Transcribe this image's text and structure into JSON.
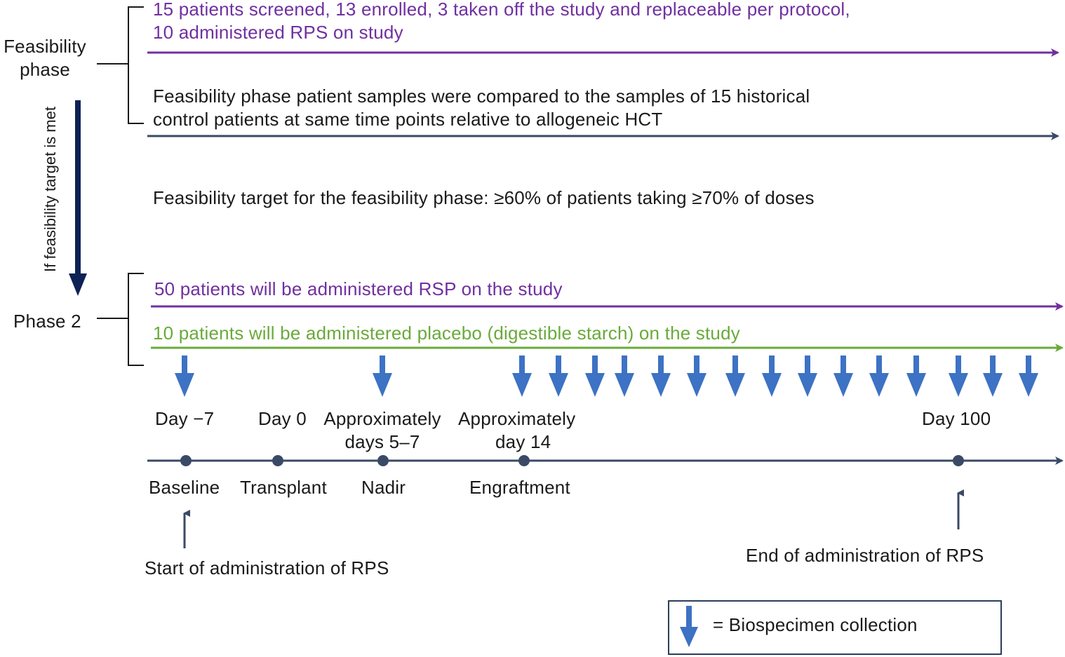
{
  "phases": {
    "feasibility_label": [
      "Feasibility",
      "phase"
    ],
    "phase2_label": "Phase 2",
    "transition_label": "If feasibility target is met"
  },
  "feasibility": {
    "rps_line1": "15 patients screened, 13 enrolled, 3 taken off the study and replaceable per protocol,",
    "rps_line2": "10 administered RPS on study",
    "control_line1": "Feasibility phase patient samples were compared to the samples of 15 historical",
    "control_line2": "control patients at same time points relative to allogeneic HCT",
    "target": "Feasibility target for the feasibility phase: ≥60% of patients taking ≥70% of doses"
  },
  "phase2": {
    "rsp_arm": "50 patients will be administered RSP on the study",
    "placebo_arm": "10 patients will be administered placebo (digestible starch) on the study"
  },
  "timeline": {
    "points": [
      {
        "day": "Day −7",
        "event": "Baseline"
      },
      {
        "day": "Day 0",
        "event": "Transplant"
      },
      {
        "day": [
          "Approximately",
          "days 5–7"
        ],
        "event": "Nadir"
      },
      {
        "day": [
          "Approximately",
          "day 14"
        ],
        "event": "Engraftment"
      },
      {
        "day": "Day 100",
        "event": ""
      }
    ],
    "start_note": "Start of administration of RPS",
    "end_note": "End of administration of RPS",
    "biospecimen_collections": 17
  },
  "legend": {
    "text": "= Biospecimen collection",
    "icon": "down-arrow-icon"
  },
  "colors": {
    "purple": "#7030a0",
    "green": "#6aaa3a",
    "navy": "#3a4a66",
    "dark_navy": "#0d2255",
    "arrow_blue": "#3d72c4"
  }
}
